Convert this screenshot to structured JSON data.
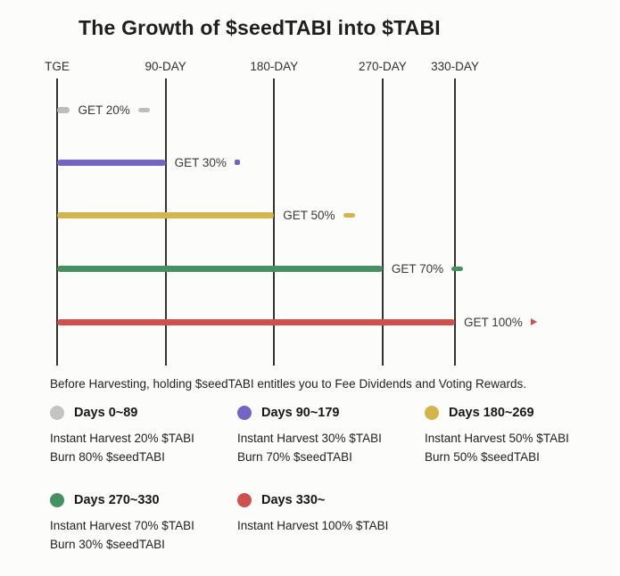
{
  "title": "The Growth of $seedTABI into $TABI",
  "chart_data": {
    "type": "bar",
    "orientation": "horizontal",
    "grid": true,
    "x_ticks": [
      "TGE",
      "90-DAY",
      "180-DAY",
      "270-DAY",
      "330-DAY"
    ],
    "x_tick_days": [
      0,
      90,
      180,
      270,
      330
    ],
    "x_range_days": [
      0,
      330
    ],
    "series": [
      {
        "name": "Days 0~89",
        "start_day": 0,
        "end_day": 10,
        "label": "GET 20%",
        "color": "#bdbdbd",
        "marker": "dash"
      },
      {
        "name": "Days 90~179",
        "start_day": 0,
        "end_day": 90,
        "label": "GET 30%",
        "color": "#7365c6",
        "marker": "dot"
      },
      {
        "name": "Days 180~269",
        "start_day": 0,
        "end_day": 180,
        "label": "GET 50%",
        "color": "#d4b54d",
        "marker": "dash"
      },
      {
        "name": "Days 270~330",
        "start_day": 0,
        "end_day": 270,
        "label": "GET 70%",
        "color": "#47905f",
        "marker": "dash"
      },
      {
        "name": "Days 330~",
        "start_day": 0,
        "end_day": 330,
        "label": "GET 100%",
        "color": "#cd514d",
        "marker": "arrow"
      }
    ],
    "caption": "Before Harvesting, holding $seedTABI entitles you to Fee Dividends and Voting Rewards."
  },
  "legend": [
    {
      "title": "Days 0~89",
      "color": "#c3c3c3",
      "lines": [
        "Instant Harvest 20% $TABI",
        "Burn 80% $seedTABI"
      ]
    },
    {
      "title": "Days 90~179",
      "color": "#7365c6",
      "lines": [
        "Instant Harvest 30% $TABI",
        "Burn 70% $seedTABI"
      ]
    },
    {
      "title": "Days 180~269",
      "color": "#d4b54d",
      "lines": [
        "Instant Harvest 50% $TABI",
        "Burn 50% $seedTABI"
      ]
    },
    {
      "title": "Days 270~330",
      "color": "#47905f",
      "lines": [
        "Instant Harvest 70% $TABI",
        "Burn 30% $seedTABI"
      ]
    },
    {
      "title": "Days 330~",
      "color": "#cd514d",
      "lines": [
        "Instant Harvest 100% $TABI"
      ]
    }
  ]
}
